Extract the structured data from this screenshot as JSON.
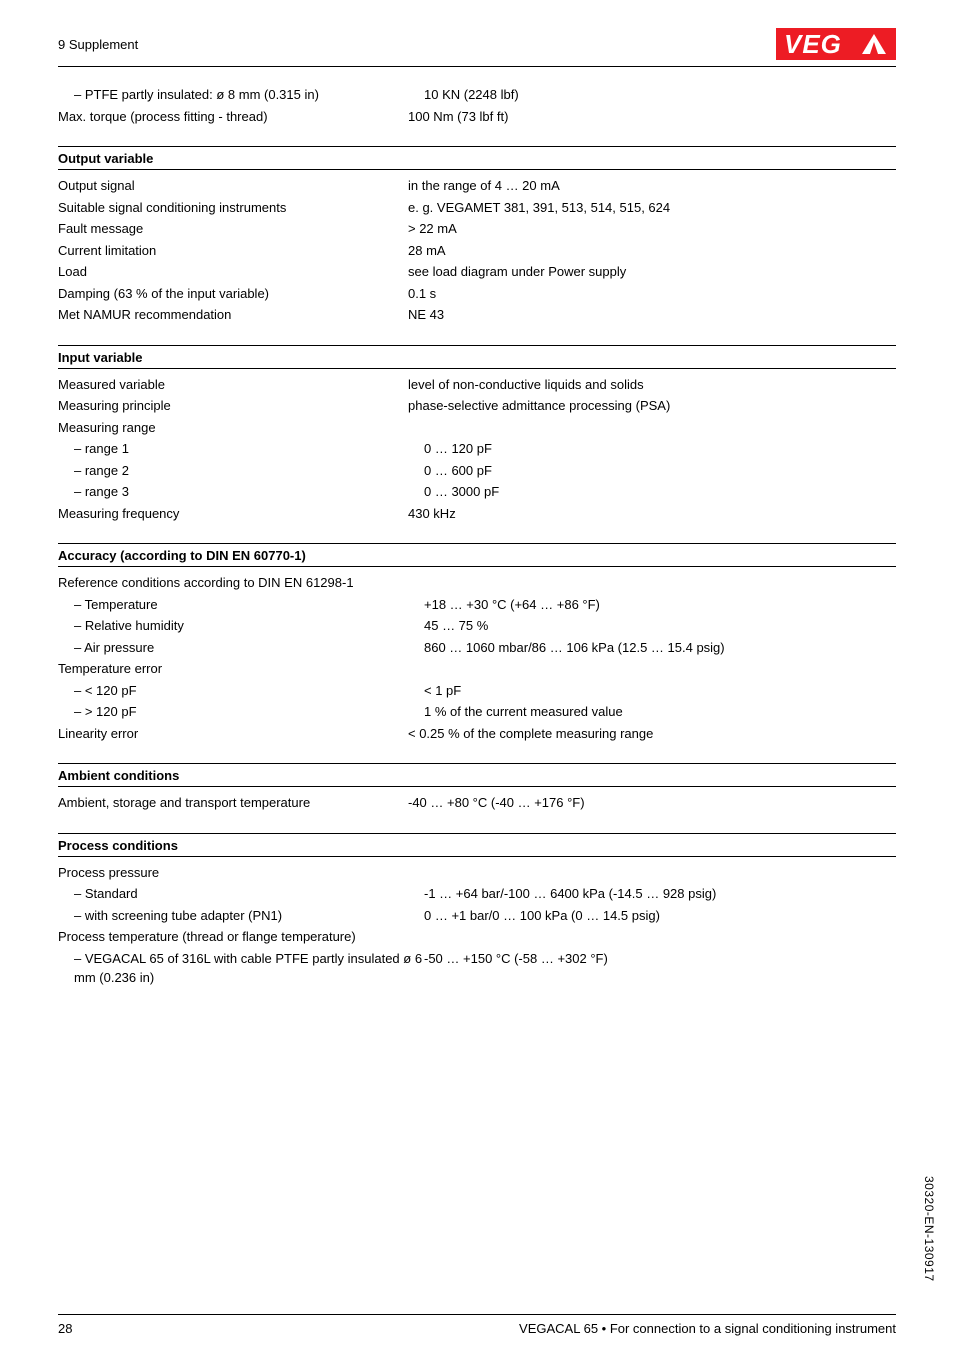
{
  "header": {
    "section": "9 Supplement"
  },
  "logo": {
    "bg": "#ed1c24",
    "letters": "VEGA",
    "triangle_fill": "#ffffff",
    "text_fill": "#ffffff"
  },
  "pre_block": {
    "rows": [
      {
        "label": "PTFE partly insulated: ø 8 mm (0.315 in)",
        "value": "10 KN (2248 lbf)",
        "indent": true
      },
      {
        "label": "Max. torque (process fitting - thread)",
        "value": "100 Nm (73 lbf ft)",
        "indent": false
      }
    ]
  },
  "sections": [
    {
      "title": "Output variable",
      "rows": [
        {
          "label": "Output signal",
          "value": "in the range of 4 … 20 mA"
        },
        {
          "label": "Suitable signal conditioning instruments",
          "value": "e. g. VEGAMET 381, 391, 513, 514, 515, 624"
        },
        {
          "label": "Fault message",
          "value": "> 22 mA"
        },
        {
          "label": "Current limitation",
          "value": "28 mA"
        },
        {
          "label": "Load",
          "value": "see load diagram under Power supply"
        },
        {
          "label": "Damping (63 % of the input variable)",
          "value": "0.1 s"
        },
        {
          "label": "Met NAMUR recommendation",
          "value": "NE 43"
        }
      ]
    },
    {
      "title": "Input variable",
      "rows": [
        {
          "label": "Measured variable",
          "value": "level of non-conductive liquids and solids"
        },
        {
          "label": "Measuring principle",
          "value": "phase-selective admittance processing (PSA)"
        },
        {
          "label": "Measuring range",
          "value": ""
        },
        {
          "label": "range 1",
          "value": "0 … 120 pF",
          "indent": true
        },
        {
          "label": "range 2",
          "value": "0 … 600 pF",
          "indent": true
        },
        {
          "label": "range 3",
          "value": "0 … 3000 pF",
          "indent": true
        },
        {
          "label": "Measuring frequency",
          "value": "430 kHz"
        }
      ]
    },
    {
      "title": "Accuracy (according to DIN EN 60770-1)",
      "rows": [
        {
          "label": "Reference conditions according to DIN EN 61298-1",
          "value": "",
          "underline": true
        },
        {
          "label": "Temperature",
          "value": "+18 … +30 °C (+64 … +86 °F)",
          "indent": true
        },
        {
          "label": "Relative humidity",
          "value": "45 … 75 %",
          "indent": true
        },
        {
          "label": "Air pressure",
          "value": "860 … 1060 mbar/86 … 106 kPa (12.5 … 15.4 psig)",
          "indent": true
        },
        {
          "label": "Temperature error",
          "value": ""
        },
        {
          "label": "< 120 pF",
          "value": "< 1 pF",
          "indent": true
        },
        {
          "label": "> 120 pF",
          "value": "1 % of the current measured value",
          "indent": true
        },
        {
          "label": "Linearity error",
          "value": "< 0.25 % of the complete measuring range"
        }
      ]
    },
    {
      "title": "Ambient conditions",
      "rows": [
        {
          "label": "Ambient, storage and transport temperature",
          "value": "-40 … +80 °C (-40 … +176 °F)",
          "underline": true
        }
      ]
    },
    {
      "title": "Process conditions",
      "rows": [
        {
          "label": "Process pressure",
          "value": "",
          "underline": true
        },
        {
          "label": "Standard",
          "value": "-1 … +64 bar/-100 … 6400 kPa (-14.5 … 928 psig)",
          "indent": true
        },
        {
          "label": "with screening tube adapter (PN1)",
          "value": "0 … +1 bar/0 … 100 kPa (0 … 14.5 psig)",
          "indent": true
        },
        {
          "label": "Process temperature (thread or flange temperature)",
          "value": ""
        },
        {
          "label": "VEGACAL 65 of 316L with cable PTFE partly insulated ø 6 mm (0.236 in)",
          "value": "-50 … +150 °C (-58 … +302 °F)",
          "indent": true
        }
      ]
    }
  ],
  "side_code": "30320-EN-130917",
  "footer": {
    "page": "28",
    "product": "VEGACAL 65 • For connection to a signal conditioning instrument"
  }
}
